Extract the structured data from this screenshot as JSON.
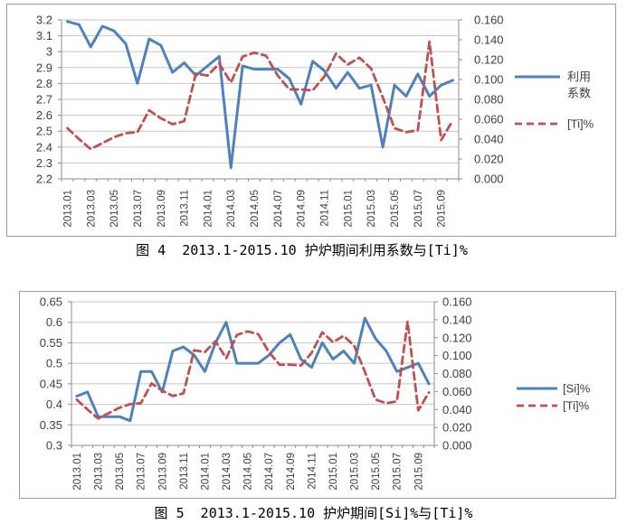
{
  "colors": {
    "series_blue": "#4f81bd",
    "series_red": "#c0504d",
    "gridline": "#c6c6c6",
    "axis": "#8c8c8c",
    "tick_text": "#3f3f3f",
    "box_border": "#9b9b9b",
    "background": "#ffffff"
  },
  "months": [
    "2013.01",
    "2013.02",
    "2013.03",
    "2013.04",
    "2013.05",
    "2013.06",
    "2013.07",
    "2013.08",
    "2013.09",
    "2013.10",
    "2013.11",
    "2013.12",
    "2014.01",
    "2014.02",
    "2014.03",
    "2014.04",
    "2014.05",
    "2014.06",
    "2014.07",
    "2014.08",
    "2014.09",
    "2014.10",
    "2014.11",
    "2014.12",
    "2015.01",
    "2015.02",
    "2015.03",
    "2015.04",
    "2015.05",
    "2015.06",
    "2015.07",
    "2015.08",
    "2015.09",
    "2015.10"
  ],
  "x_tick_labels": [
    "2013.01",
    "2013.03",
    "2013.05",
    "2013.07",
    "2013.09",
    "2013.11",
    "2014.01",
    "2014.03",
    "2014.05",
    "2014.07",
    "2014.09",
    "2014.11",
    "2015.01",
    "2015.03",
    "2015.05",
    "2015.07",
    "2015.09"
  ],
  "chart_data": [
    {
      "id": "fig4",
      "type": "line",
      "caption": "图 4  2013.1-2015.10 护炉期间利用系数与[Ti]%",
      "grid": true,
      "legend_position": "right",
      "left_axis": {
        "min": 2.2,
        "max": 3.2,
        "step": 0.1,
        "labels": [
          "3.2",
          "3.1",
          "3",
          "2.9",
          "2.8",
          "2.7",
          "2.6",
          "2.5",
          "2.4",
          "2.3",
          "2.2"
        ]
      },
      "right_axis": {
        "min": 0.0,
        "max": 0.16,
        "step": 0.02,
        "labels": [
          "0.160",
          "0.140",
          "0.120",
          "0.100",
          "0.080",
          "0.060",
          "0.040",
          "0.020",
          "0.000"
        ]
      },
      "legend": [
        {
          "name": "利用系数",
          "text_lines": [
            "利用",
            "系数"
          ],
          "series_index": 0
        },
        {
          "name": "[Ti]%",
          "text_lines": [
            "[Ti]%"
          ],
          "series_index": 1
        }
      ],
      "series": [
        {
          "name": "利用系数",
          "axis": "left",
          "style": "solid",
          "color_key": "series_blue",
          "values": [
            3.19,
            3.17,
            3.03,
            3.16,
            3.13,
            3.05,
            2.8,
            3.08,
            3.04,
            2.87,
            2.93,
            2.85,
            2.91,
            2.97,
            2.27,
            2.91,
            2.89,
            2.89,
            2.89,
            2.83,
            2.67,
            2.94,
            2.88,
            2.77,
            2.87,
            2.77,
            2.79,
            2.4,
            2.79,
            2.72,
            2.86,
            2.72,
            2.79,
            2.82
          ]
        },
        {
          "name": "[Ti]%",
          "axis": "right",
          "style": "dashed",
          "color_key": "series_red",
          "values": [
            0.051,
            0.04,
            0.03,
            0.036,
            0.042,
            0.046,
            0.047,
            0.069,
            0.061,
            0.055,
            0.058,
            0.106,
            0.104,
            0.116,
            0.097,
            0.123,
            0.127,
            0.124,
            0.104,
            0.09,
            0.09,
            0.089,
            0.103,
            0.126,
            0.115,
            0.122,
            0.111,
            0.082,
            0.051,
            0.047,
            0.049,
            0.138,
            0.039,
            0.059
          ]
        }
      ]
    },
    {
      "id": "fig5",
      "type": "line",
      "caption": "图 5  2013.1-2015.10 护炉期间[Si]%与[Ti]%",
      "grid": true,
      "legend_position": "right",
      "left_axis": {
        "min": 0.3,
        "max": 0.65,
        "step": 0.05,
        "labels": [
          "0.65",
          "0.6",
          "0.55",
          "0.5",
          "0.45",
          "0.4",
          "0.35",
          "0.3"
        ]
      },
      "right_axis": {
        "min": 0.0,
        "max": 0.16,
        "step": 0.02,
        "labels": [
          "0.160",
          "0.140",
          "0.120",
          "0.100",
          "0.080",
          "0.060",
          "0.040",
          "0.020",
          "0.000"
        ]
      },
      "legend": [
        {
          "name": "[Si]%",
          "text_lines": [
            "[Si]%"
          ],
          "series_index": 0
        },
        {
          "name": "[Ti]%",
          "text_lines": [
            "[Ti]%"
          ],
          "series_index": 1
        }
      ],
      "series": [
        {
          "name": "[Si]%",
          "axis": "left",
          "style": "solid",
          "color_key": "series_blue",
          "values": [
            0.42,
            0.43,
            0.37,
            0.37,
            0.37,
            0.36,
            0.48,
            0.48,
            0.43,
            0.53,
            0.54,
            0.52,
            0.48,
            0.55,
            0.6,
            0.5,
            0.5,
            0.5,
            0.52,
            0.55,
            0.57,
            0.51,
            0.49,
            0.55,
            0.51,
            0.53,
            0.5,
            0.61,
            0.56,
            0.53,
            0.48,
            0.49,
            0.5,
            0.45
          ]
        },
        {
          "name": "[Ti]%",
          "axis": "right",
          "style": "dashed",
          "color_key": "series_red",
          "values": [
            0.051,
            0.04,
            0.03,
            0.036,
            0.042,
            0.046,
            0.047,
            0.069,
            0.061,
            0.055,
            0.058,
            0.106,
            0.104,
            0.116,
            0.097,
            0.123,
            0.127,
            0.124,
            0.104,
            0.09,
            0.09,
            0.089,
            0.103,
            0.126,
            0.115,
            0.122,
            0.111,
            0.082,
            0.051,
            0.047,
            0.049,
            0.138,
            0.039,
            0.059
          ]
        }
      ]
    }
  ]
}
